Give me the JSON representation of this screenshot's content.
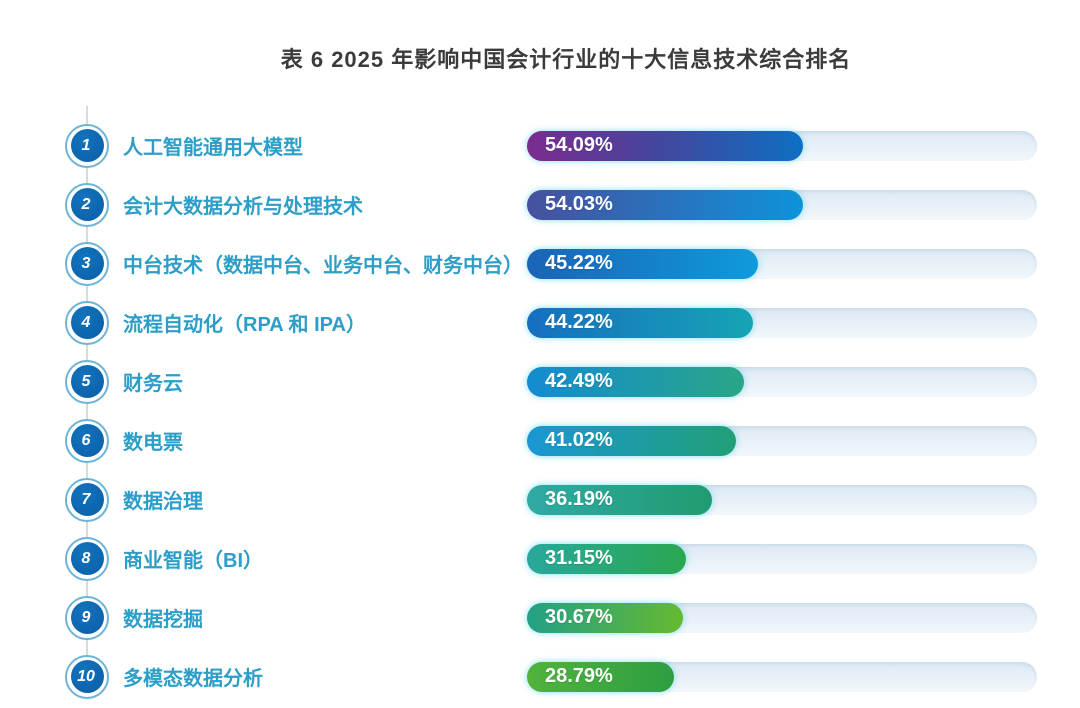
{
  "title": "表 6  2025 年影响中国会计行业的十大信息技术综合排名",
  "chart_data": {
    "type": "bar",
    "orientation": "horizontal",
    "title": "表 6  2025 年影响中国会计行业的十大信息技术综合排名",
    "xlim": [
      0,
      100
    ],
    "grid": false,
    "ranks": [
      "1",
      "2",
      "3",
      "4",
      "5",
      "6",
      "7",
      "8",
      "9",
      "10"
    ],
    "categories": [
      "人工智能通用大模型",
      "会计大数据分析与处理技术",
      "中台技术（数据中台、业务中台、财务中台）",
      "流程自动化（RPA 和 IPA）",
      "财务云",
      "数电票",
      "数据治理",
      "商业智能（BI）",
      "数据挖掘",
      "多模态数据分析"
    ],
    "values": [
      54.09,
      54.03,
      45.22,
      44.22,
      42.49,
      41.02,
      36.19,
      31.15,
      30.67,
      28.79
    ],
    "value_labels": [
      "54.09%",
      "54.03%",
      "45.22%",
      "44.22%",
      "42.49%",
      "41.02%",
      "36.19%",
      "31.15%",
      "30.67%",
      "28.79%"
    ],
    "bar_gradients": [
      [
        "#7c2b8e",
        "#41489f",
        "#0d6fc2"
      ],
      [
        "#47509f",
        "#0d93da"
      ],
      [
        "#1b63b5",
        "#0f9bdc"
      ],
      [
        "#156fc0",
        "#16a4b4"
      ],
      [
        "#138bd2",
        "#29a687"
      ],
      [
        "#1a97d4",
        "#21a077"
      ],
      [
        "#30aaa4",
        "#1f9c70"
      ],
      [
        "#28a89c",
        "#2aa750"
      ],
      [
        "#22a185",
        "#66b930"
      ],
      [
        "#52b33c",
        "#2c9e41"
      ]
    ]
  },
  "colors": {
    "background": "#ffffff",
    "title_text": "#3b3b3b",
    "label_text": "#2d9ec7",
    "rank_circle_fill": "#0b66b1",
    "rank_circle_ring": "#6cb5d6",
    "rank_number_text": "#ffffff",
    "bar_track": "#e4eef7",
    "bar_value_text": "#ffffff",
    "timeline_line": "#d6dbde"
  }
}
